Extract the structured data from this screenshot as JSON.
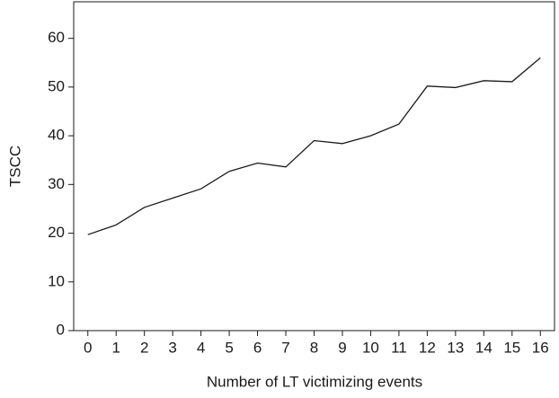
{
  "chart_data": {
    "type": "line",
    "x_label": "Number of LT victimizing events",
    "y_label": "TSCC",
    "x": [
      0,
      1,
      2,
      3,
      4,
      5,
      6,
      7,
      8,
      9,
      10,
      11,
      12,
      13,
      14,
      15,
      16
    ],
    "series": [
      {
        "name": "TSCC",
        "color": "#1a1a1a",
        "values": [
          19.7,
          21.7,
          25.3,
          27.2,
          29.1,
          32.7,
          34.4,
          33.6,
          39.0,
          38.4,
          40.0,
          42.4,
          50.2,
          49.9,
          51.3,
          51.1,
          56.0
        ]
      }
    ],
    "xlim": [
      -0.5,
      16.5
    ],
    "xticks": [
      0,
      1,
      2,
      3,
      4,
      5,
      6,
      7,
      8,
      9,
      10,
      11,
      12,
      13,
      14,
      15,
      16
    ],
    "ylim": [
      0,
      67.5
    ],
    "yticks": [
      0,
      10,
      20,
      30,
      40,
      50,
      60
    ],
    "grid": false
  }
}
